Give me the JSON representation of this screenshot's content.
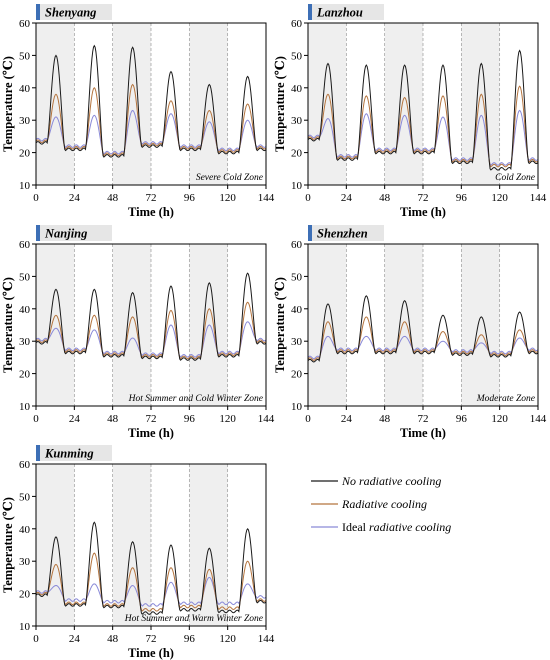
{
  "colors": {
    "no_cooling": "#1a1a1a",
    "radiative": "#b5753f",
    "ideal": "#8a8ad8",
    "night_band": "#efefef",
    "title_bar_accent": "#3d6fb6",
    "title_bar_fill": "#e6e6e6"
  },
  "legend": {
    "items": [
      {
        "key": "no_cooling",
        "parts": [
          {
            "text": "No radiative cooling",
            "italic": true
          }
        ]
      },
      {
        "key": "radiative",
        "parts": [
          {
            "text": "Radiative cooling",
            "italic": true
          }
        ]
      },
      {
        "key": "ideal",
        "parts": [
          {
            "text": "Ideal ",
            "italic": false
          },
          {
            "text": "radiative cooling",
            "italic": true
          }
        ]
      }
    ]
  },
  "chart_data": [
    {
      "type": "line",
      "title": "Shenyang",
      "annotation": "Severe Cold Zone",
      "xlabel": "Time (h)",
      "ylabel": "Temperature (℃)",
      "xlim": [
        0,
        144
      ],
      "ylim": [
        10,
        60
      ],
      "xticks": [
        0,
        24,
        48,
        72,
        96,
        120,
        144
      ],
      "yticks": [
        10,
        20,
        30,
        40,
        50,
        60
      ],
      "shaded_x": [
        [
          0,
          24
        ],
        [
          48,
          72
        ],
        [
          96,
          120
        ]
      ],
      "series": [
        {
          "name": "No radiative cooling",
          "key": "no_cooling",
          "min": [
            23,
            21,
            19,
            22,
            21,
            20,
            21
          ],
          "max": [
            50,
            53,
            52.5,
            45,
            41,
            43.5
          ]
        },
        {
          "name": "Radiative cooling",
          "key": "radiative",
          "min": [
            23.5,
            21.5,
            19.5,
            22.5,
            21.5,
            20.5,
            21.5
          ],
          "max": [
            38,
            40,
            41,
            36,
            33,
            35
          ]
        },
        {
          "name": "Ideal radiative cooling",
          "key": "ideal",
          "min": [
            24,
            22,
            20,
            23,
            22,
            21,
            22
          ],
          "max": [
            31,
            31.5,
            33,
            32,
            29.5,
            30
          ]
        }
      ]
    },
    {
      "type": "line",
      "title": "Lanzhou",
      "annotation": "Cold Zone",
      "xlabel": "Time (h)",
      "ylabel": "Temperature (℃)",
      "xlim": [
        0,
        144
      ],
      "ylim": [
        10,
        60
      ],
      "xticks": [
        0,
        24,
        48,
        72,
        96,
        120,
        144
      ],
      "yticks": [
        10,
        20,
        30,
        40,
        50,
        60
      ],
      "shaded_x": [
        [
          0,
          24
        ],
        [
          48,
          72
        ],
        [
          96,
          120
        ]
      ],
      "series": [
        {
          "name": "No radiative cooling",
          "key": "no_cooling",
          "min": [
            24,
            18,
            20,
            20,
            17,
            15,
            17
          ],
          "max": [
            47.5,
            47,
            47,
            47,
            47.5,
            51.5
          ]
        },
        {
          "name": "Radiative cooling",
          "key": "radiative",
          "min": [
            24.5,
            18.5,
            20.5,
            20.5,
            17.5,
            16,
            17.5
          ],
          "max": [
            38,
            37.5,
            37,
            37.5,
            38,
            40.5
          ]
        },
        {
          "name": "Ideal radiative cooling",
          "key": "ideal",
          "min": [
            25,
            19,
            21,
            21,
            18,
            16.5,
            18
          ],
          "max": [
            30.5,
            32,
            31.5,
            31,
            31.5,
            33
          ]
        }
      ]
    },
    {
      "type": "line",
      "title": "Nanjing",
      "annotation": "Hot Summer and Cold Winter Zone",
      "xlabel": "Time (h)",
      "ylabel": "Temperature (℃)",
      "xlim": [
        0,
        144
      ],
      "ylim": [
        10,
        60
      ],
      "xticks": [
        0,
        24,
        48,
        72,
        96,
        120,
        144
      ],
      "yticks": [
        10,
        20,
        30,
        40,
        50,
        60
      ],
      "shaded_x": [
        [
          0,
          24
        ],
        [
          48,
          72
        ],
        [
          96,
          120
        ]
      ],
      "series": [
        {
          "name": "No radiative cooling",
          "key": "no_cooling",
          "min": [
            29.5,
            26.5,
            25.5,
            25,
            24.5,
            25.5,
            29.5
          ],
          "max": [
            46,
            46,
            45,
            47,
            48,
            51
          ]
        },
        {
          "name": "Radiative cooling",
          "key": "radiative",
          "min": [
            30,
            27,
            26,
            25.5,
            25,
            26,
            30
          ],
          "max": [
            38,
            38,
            37.5,
            39.5,
            40,
            42
          ]
        },
        {
          "name": "Ideal radiative cooling",
          "key": "ideal",
          "min": [
            30.5,
            27.5,
            26.5,
            26,
            25.5,
            26.5,
            30.5
          ],
          "max": [
            34,
            33.5,
            31,
            35,
            35,
            36
          ]
        }
      ]
    },
    {
      "type": "line",
      "title": "Shenzhen",
      "annotation": "Moderate Zone",
      "xlabel": "Time (h)",
      "ylabel": "Temperature (℃)",
      "xlim": [
        0,
        144
      ],
      "ylim": [
        10,
        60
      ],
      "xticks": [
        0,
        24,
        48,
        72,
        96,
        120,
        144
      ],
      "yticks": [
        10,
        20,
        30,
        40,
        50,
        60
      ],
      "shaded_x": [
        [
          0,
          24
        ],
        [
          48,
          72
        ],
        [
          96,
          120
        ]
      ],
      "series": [
        {
          "name": "No radiative cooling",
          "key": "no_cooling",
          "min": [
            24,
            26.5,
            26.5,
            26.5,
            26,
            25.5,
            26.5
          ],
          "max": [
            41.5,
            44,
            42.5,
            38,
            37.5,
            39
          ]
        },
        {
          "name": "Radiative cooling",
          "key": "radiative",
          "min": [
            24.5,
            27,
            27,
            27,
            26.5,
            26,
            27
          ],
          "max": [
            36,
            37.5,
            36,
            33,
            32,
            33.5
          ]
        },
        {
          "name": "Ideal radiative cooling",
          "key": "ideal",
          "min": [
            25,
            27.5,
            27.5,
            27.5,
            27,
            26.5,
            27.5
          ],
          "max": [
            31.5,
            31.5,
            31.5,
            30,
            29.5,
            31
          ]
        }
      ]
    },
    {
      "type": "line",
      "title": "Kunming",
      "annotation": "Hot Summer and Warm Winter Zone",
      "xlabel": "Time (h)",
      "ylabel": "Temperature (℃)",
      "xlim": [
        0,
        144
      ],
      "ylim": [
        10,
        60
      ],
      "xticks": [
        0,
        24,
        48,
        72,
        96,
        120,
        144
      ],
      "yticks": [
        10,
        20,
        30,
        40,
        50,
        60
      ],
      "shaded_x": [
        [
          0,
          24
        ],
        [
          48,
          72
        ],
        [
          96,
          120
        ]
      ],
      "series": [
        {
          "name": "No radiative cooling",
          "key": "no_cooling",
          "min": [
            19.5,
            16.5,
            16,
            14,
            15,
            14.5,
            17.5
          ],
          "max": [
            37.5,
            42,
            36,
            35,
            34,
            40
          ]
        },
        {
          "name": "Radiative cooling",
          "key": "radiative",
          "min": [
            20,
            17,
            16.5,
            15,
            16,
            15.5,
            18
          ],
          "max": [
            29,
            32.5,
            28,
            28,
            27.5,
            30
          ]
        },
        {
          "name": "Ideal radiative cooling",
          "key": "ideal",
          "min": [
            20.5,
            18,
            17.5,
            16.5,
            17,
            17,
            19
          ],
          "max": [
            22.5,
            23,
            22.5,
            23.5,
            25,
            23
          ]
        }
      ]
    }
  ]
}
